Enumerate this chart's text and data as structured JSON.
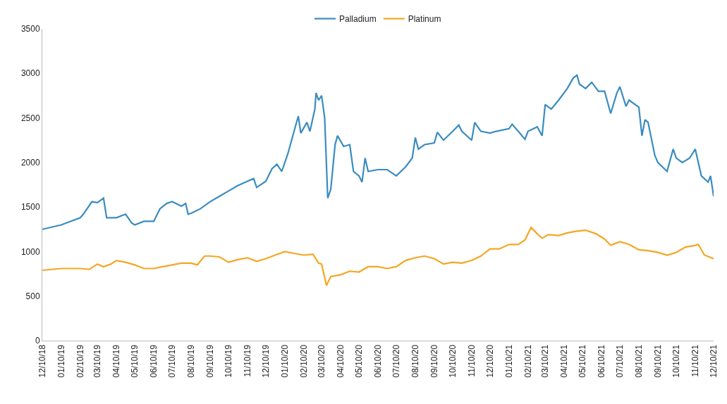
{
  "chart_data": {
    "type": "line",
    "series": [
      {
        "name": "Palladium",
        "color": "#3a8cc1",
        "x": [
          "2018-12-10",
          "2019-01-10",
          "2019-02-10",
          "2019-02-15",
          "2019-03-01",
          "2019-03-10",
          "2019-03-20",
          "2019-03-25",
          "2019-04-10",
          "2019-04-25",
          "2019-05-05",
          "2019-05-10",
          "2019-05-25",
          "2019-06-10",
          "2019-06-20",
          "2019-07-01",
          "2019-07-10",
          "2019-07-25",
          "2019-08-01",
          "2019-08-05",
          "2019-08-10",
          "2019-08-25",
          "2019-09-10",
          "2019-09-25",
          "2019-10-10",
          "2019-10-25",
          "2019-11-10",
          "2019-11-20",
          "2019-11-25",
          "2019-12-10",
          "2019-12-20",
          "2019-12-28",
          "2020-01-05",
          "2020-01-15",
          "2020-01-25",
          "2020-02-01",
          "2020-02-05",
          "2020-02-15",
          "2020-02-20",
          "2020-02-28",
          "2020-03-01",
          "2020-03-05",
          "2020-03-10",
          "2020-03-15",
          "2020-03-20",
          "2020-03-25",
          "2020-04-01",
          "2020-04-05",
          "2020-04-15",
          "2020-04-25",
          "2020-05-01",
          "2020-05-10",
          "2020-05-15",
          "2020-05-20",
          "2020-05-25",
          "2020-06-10",
          "2020-06-25",
          "2020-07-10",
          "2020-07-25",
          "2020-08-05",
          "2020-08-10",
          "2020-08-15",
          "2020-08-25",
          "2020-09-10",
          "2020-09-15",
          "2020-09-25",
          "2020-10-10",
          "2020-10-20",
          "2020-10-25",
          "2020-11-10",
          "2020-11-15",
          "2020-11-25",
          "2020-12-10",
          "2020-12-20",
          "2021-01-10",
          "2021-01-15",
          "2021-01-25",
          "2021-02-05",
          "2021-02-10",
          "2021-02-25",
          "2021-03-05",
          "2021-03-10",
          "2021-03-20",
          "2021-04-01",
          "2021-04-15",
          "2021-04-25",
          "2021-05-01",
          "2021-05-05",
          "2021-05-15",
          "2021-05-25",
          "2021-06-05",
          "2021-06-15",
          "2021-06-25",
          "2021-07-05",
          "2021-07-10",
          "2021-07-20",
          "2021-07-25",
          "2021-08-10",
          "2021-08-15",
          "2021-08-20",
          "2021-08-25",
          "2021-09-05",
          "2021-09-10",
          "2021-09-25",
          "2021-10-05",
          "2021-10-10",
          "2021-10-20",
          "2021-11-01",
          "2021-11-10",
          "2021-11-20",
          "2021-12-01",
          "2021-12-05",
          "2021-12-10"
        ],
        "values": [
          1250,
          1300,
          1380,
          1420,
          1560,
          1550,
          1600,
          1380,
          1380,
          1420,
          1320,
          1300,
          1340,
          1340,
          1480,
          1540,
          1560,
          1510,
          1540,
          1420,
          1430,
          1480,
          1560,
          1620,
          1680,
          1740,
          1790,
          1820,
          1720,
          1790,
          1930,
          1980,
          1900,
          2100,
          2350,
          2520,
          2330,
          2450,
          2350,
          2600,
          2780,
          2700,
          2750,
          2500,
          1600,
          1700,
          2200,
          2300,
          2180,
          2200,
          1900,
          1850,
          1780,
          2050,
          1900,
          1920,
          1920,
          1850,
          1950,
          2050,
          2280,
          2150,
          2200,
          2220,
          2340,
          2250,
          2350,
          2420,
          2350,
          2250,
          2450,
          2350,
          2330,
          2350,
          2380,
          2430,
          2350,
          2260,
          2350,
          2400,
          2300,
          2650,
          2600,
          2700,
          2830,
          2950,
          2980,
          2880,
          2830,
          2900,
          2800,
          2800,
          2550,
          2780,
          2850,
          2630,
          2700,
          2620,
          2300,
          2480,
          2450,
          2080,
          2000,
          1900,
          2150,
          2050,
          2000,
          2050,
          2150,
          1850,
          1780,
          1850,
          1620
        ]
      },
      {
        "name": "Platinum",
        "color": "#f5a623",
        "x": [
          "2018-12-10",
          "2019-01-10",
          "2019-02-10",
          "2019-02-25",
          "2019-03-10",
          "2019-03-20",
          "2019-04-01",
          "2019-04-10",
          "2019-04-25",
          "2019-05-10",
          "2019-05-25",
          "2019-06-10",
          "2019-06-25",
          "2019-07-10",
          "2019-07-25",
          "2019-08-10",
          "2019-08-20",
          "2019-09-01",
          "2019-09-10",
          "2019-09-25",
          "2019-10-10",
          "2019-10-25",
          "2019-11-10",
          "2019-11-25",
          "2019-12-10",
          "2019-12-25",
          "2020-01-10",
          "2020-01-25",
          "2020-02-10",
          "2020-02-25",
          "2020-03-05",
          "2020-03-10",
          "2020-03-18",
          "2020-03-25",
          "2020-04-10",
          "2020-04-25",
          "2020-05-10",
          "2020-05-25",
          "2020-06-10",
          "2020-06-25",
          "2020-07-10",
          "2020-07-25",
          "2020-08-10",
          "2020-08-25",
          "2020-09-10",
          "2020-09-25",
          "2020-10-10",
          "2020-10-25",
          "2020-11-10",
          "2020-11-25",
          "2020-12-10",
          "2020-12-25",
          "2021-01-10",
          "2021-01-25",
          "2021-02-05",
          "2021-02-15",
          "2021-02-25",
          "2021-03-05",
          "2021-03-15",
          "2021-04-01",
          "2021-04-15",
          "2021-05-01",
          "2021-05-15",
          "2021-06-01",
          "2021-06-15",
          "2021-06-25",
          "2021-07-10",
          "2021-07-25",
          "2021-08-10",
          "2021-08-25",
          "2021-09-10",
          "2021-09-25",
          "2021-10-10",
          "2021-10-25",
          "2021-11-10",
          "2021-11-15",
          "2021-11-25",
          "2021-12-10"
        ],
        "values": [
          790,
          810,
          810,
          800,
          860,
          830,
          860,
          900,
          880,
          850,
          810,
          810,
          830,
          850,
          870,
          870,
          850,
          950,
          950,
          940,
          880,
          910,
          930,
          890,
          920,
          960,
          1000,
          980,
          960,
          970,
          870,
          860,
          620,
          720,
          740,
          780,
          770,
          830,
          830,
          810,
          830,
          900,
          930,
          950,
          920,
          860,
          880,
          870,
          900,
          950,
          1030,
          1030,
          1080,
          1080,
          1130,
          1270,
          1200,
          1150,
          1190,
          1180,
          1210,
          1230,
          1240,
          1200,
          1140,
          1070,
          1110,
          1080,
          1020,
          1010,
          990,
          960,
          990,
          1050,
          1070,
          1080,
          960,
          920
        ]
      }
    ],
    "xlim": [
      "2018-12-10",
      "2021-12-10"
    ],
    "xticks": [
      {
        "value": "2018-12-10",
        "label": "12/10/18"
      },
      {
        "value": "2019-01-10",
        "label": "01/10/19"
      },
      {
        "value": "2019-02-10",
        "label": "02/10/19"
      },
      {
        "value": "2019-03-10",
        "label": "03/10/19"
      },
      {
        "value": "2019-04-10",
        "label": "04/10/19"
      },
      {
        "value": "2019-05-10",
        "label": "05/10/19"
      },
      {
        "value": "2019-06-10",
        "label": "06/10/19"
      },
      {
        "value": "2019-07-10",
        "label": "07/10/19"
      },
      {
        "value": "2019-08-10",
        "label": "08/10/19"
      },
      {
        "value": "2019-09-10",
        "label": "09/10/19"
      },
      {
        "value": "2019-10-10",
        "label": "10/10/19"
      },
      {
        "value": "2019-11-10",
        "label": "11/10/19"
      },
      {
        "value": "2019-12-10",
        "label": "12/10/19"
      },
      {
        "value": "2020-01-10",
        "label": "01/10/20"
      },
      {
        "value": "2020-02-10",
        "label": "02/10/20"
      },
      {
        "value": "2020-03-10",
        "label": "03/10/20"
      },
      {
        "value": "2020-04-10",
        "label": "04/10/20"
      },
      {
        "value": "2020-05-10",
        "label": "05/10/20"
      },
      {
        "value": "2020-06-10",
        "label": "06/10/20"
      },
      {
        "value": "2020-07-10",
        "label": "07/10/20"
      },
      {
        "value": "2020-08-10",
        "label": "08/10/20"
      },
      {
        "value": "2020-09-10",
        "label": "09/10/20"
      },
      {
        "value": "2020-10-10",
        "label": "10/10/20"
      },
      {
        "value": "2020-11-10",
        "label": "11/10/20"
      },
      {
        "value": "2020-12-10",
        "label": "12/10/20"
      },
      {
        "value": "2021-01-10",
        "label": "01/10/21"
      },
      {
        "value": "2021-02-10",
        "label": "02/10/21"
      },
      {
        "value": "2021-03-10",
        "label": "03/10/21"
      },
      {
        "value": "2021-04-10",
        "label": "04/10/21"
      },
      {
        "value": "2021-05-10",
        "label": "05/10/21"
      },
      {
        "value": "2021-06-10",
        "label": "06/10/21"
      },
      {
        "value": "2021-07-10",
        "label": "07/10/21"
      },
      {
        "value": "2021-08-10",
        "label": "08/10/21"
      },
      {
        "value": "2021-09-10",
        "label": "09/10/21"
      },
      {
        "value": "2021-10-10",
        "label": "10/10/21"
      },
      {
        "value": "2021-11-10",
        "label": "11/10/21"
      },
      {
        "value": "2021-12-10",
        "label": "12/10/21"
      }
    ],
    "ylim": [
      0,
      3500
    ],
    "yticks": [
      0,
      500,
      1000,
      1500,
      2000,
      2500,
      3000,
      3500
    ],
    "legend": "top",
    "line_style": "solid",
    "marker": "none"
  }
}
